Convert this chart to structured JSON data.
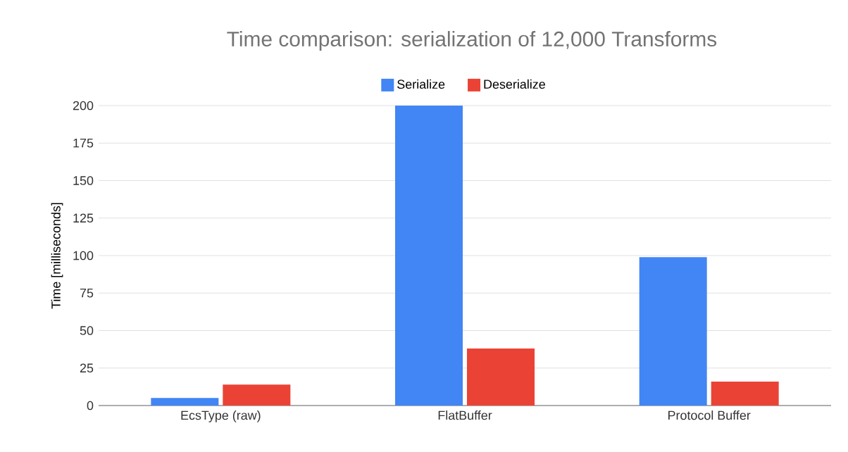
{
  "chart_data": {
    "type": "bar",
    "title": "Time comparison: serialization of 12,000 Transforms",
    "ylabel": "Time [milliseconds]",
    "categories": [
      "EcsType (raw)",
      "FlatBuffer",
      "Protocol Buffer"
    ],
    "series": [
      {
        "name": "Serialize",
        "color": "#4285f4",
        "values": [
          5,
          200,
          99
        ]
      },
      {
        "name": "Deserialize",
        "color": "#ea4335",
        "values": [
          14,
          38,
          16
        ]
      }
    ],
    "ylim": [
      0,
      200
    ],
    "yticks": [
      0,
      25,
      50,
      75,
      100,
      125,
      150,
      175,
      200
    ],
    "grid": "y",
    "legend": "top"
  }
}
